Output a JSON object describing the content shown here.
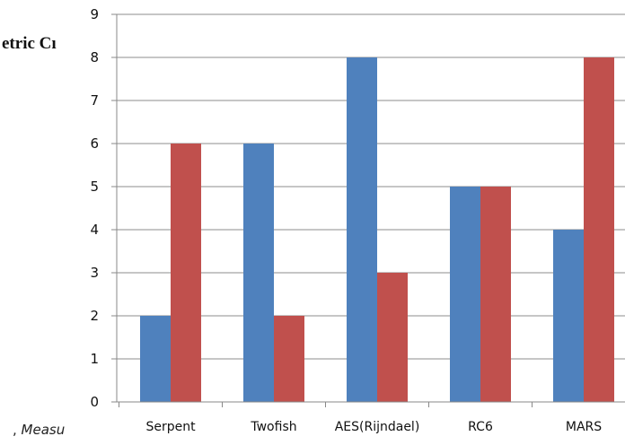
{
  "partial_text": {
    "title_fragment": "etric Cı",
    "caption_prefix": ", ",
    "caption_fragment": "Measu"
  },
  "chart_data": {
    "type": "bar",
    "categories": [
      "Serpent",
      "Twofish",
      "AES(Rijndael)",
      "RC6",
      "MARS"
    ],
    "series": [
      {
        "values": [
          2,
          6,
          8,
          5,
          4
        ],
        "color": "#4f81bd"
      },
      {
        "values": [
          6,
          2,
          3,
          5,
          8
        ],
        "color": "#c0504d"
      }
    ],
    "ylim": [
      0,
      9
    ],
    "yticks": [
      0,
      1,
      2,
      3,
      4,
      5,
      6,
      7,
      8,
      9
    ],
    "grid": true
  }
}
